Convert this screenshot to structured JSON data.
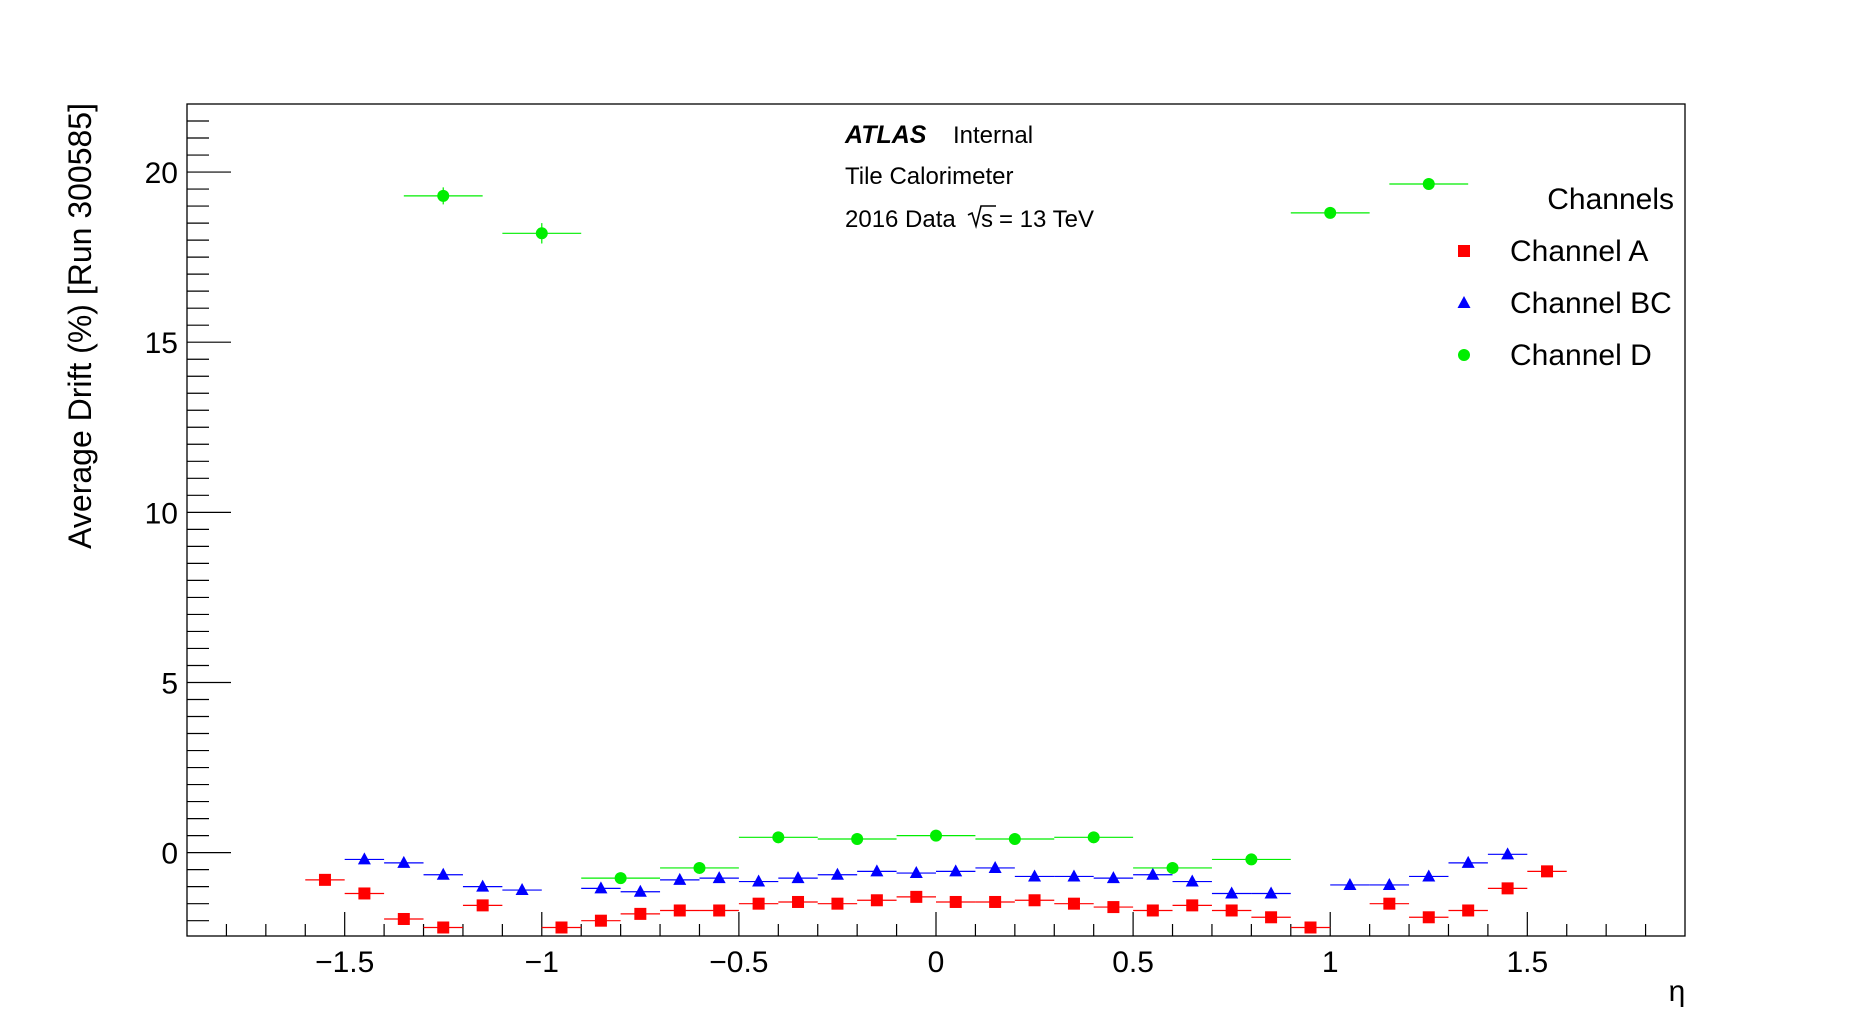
{
  "chart_data": {
    "type": "scatter",
    "title": "",
    "xlabel": "η",
    "ylabel": "Average Drift (%) [Run 300585]",
    "xlim": [
      -1.9,
      1.9
    ],
    "ylim": [
      -2.45,
      22
    ],
    "x_ticks": [
      -1.5,
      -1,
      -0.5,
      0,
      0.5,
      1,
      1.5
    ],
    "x_tick_labels": [
      "−1.5",
      "−1",
      "−0.5",
      "0",
      "0.5",
      "1",
      "1.5"
    ],
    "y_ticks": [
      0,
      5,
      10,
      15,
      20
    ],
    "y_tick_labels": [
      "0",
      "5",
      "10",
      "15",
      "20"
    ],
    "grid": false,
    "annotations": {
      "experiment": "ATLAS",
      "status": "Internal",
      "detector": "Tile Calorimeter",
      "dataset": "2016 Data",
      "energy_prefix": "s",
      "energy_value": "= 13 TeV"
    },
    "legend": {
      "title": "Channels",
      "position": "top-right"
    },
    "series": [
      {
        "name": "Channel A",
        "marker": "square",
        "color": "#ff0000",
        "x_halfwidth": 0.05,
        "points": [
          {
            "x": -1.55,
            "y": -0.8
          },
          {
            "x": -1.45,
            "y": -1.2
          },
          {
            "x": -1.35,
            "y": -1.95
          },
          {
            "x": -1.25,
            "y": -2.2
          },
          {
            "x": -1.15,
            "y": -1.55
          },
          {
            "x": -0.95,
            "y": -2.2
          },
          {
            "x": -0.85,
            "y": -2.0
          },
          {
            "x": -0.75,
            "y": -1.8
          },
          {
            "x": -0.65,
            "y": -1.7
          },
          {
            "x": -0.55,
            "y": -1.7
          },
          {
            "x": -0.45,
            "y": -1.5
          },
          {
            "x": -0.35,
            "y": -1.45
          },
          {
            "x": -0.25,
            "y": -1.5
          },
          {
            "x": -0.15,
            "y": -1.4
          },
          {
            "x": -0.05,
            "y": -1.3
          },
          {
            "x": 0.05,
            "y": -1.45
          },
          {
            "x": 0.15,
            "y": -1.45
          },
          {
            "x": 0.25,
            "y": -1.4
          },
          {
            "x": 0.35,
            "y": -1.5
          },
          {
            "x": 0.45,
            "y": -1.6
          },
          {
            "x": 0.55,
            "y": -1.7
          },
          {
            "x": 0.65,
            "y": -1.55
          },
          {
            "x": 0.75,
            "y": -1.7
          },
          {
            "x": 0.85,
            "y": -1.9
          },
          {
            "x": 0.95,
            "y": -2.2
          },
          {
            "x": 1.15,
            "y": -1.5
          },
          {
            "x": 1.25,
            "y": -1.9
          },
          {
            "x": 1.35,
            "y": -1.7
          },
          {
            "x": 1.45,
            "y": -1.05
          },
          {
            "x": 1.55,
            "y": -0.55
          }
        ]
      },
      {
        "name": "Channel BC",
        "marker": "triangle",
        "color": "#0000ff",
        "x_halfwidth": 0.05,
        "points": [
          {
            "x": -1.45,
            "y": -0.2
          },
          {
            "x": -1.35,
            "y": -0.3
          },
          {
            "x": -1.25,
            "y": -0.65
          },
          {
            "x": -1.15,
            "y": -1.0
          },
          {
            "x": -1.05,
            "y": -1.1
          },
          {
            "x": -0.85,
            "y": -1.05
          },
          {
            "x": -0.75,
            "y": -1.15
          },
          {
            "x": -0.65,
            "y": -0.8
          },
          {
            "x": -0.55,
            "y": -0.75
          },
          {
            "x": -0.45,
            "y": -0.85
          },
          {
            "x": -0.35,
            "y": -0.75
          },
          {
            "x": -0.25,
            "y": -0.65
          },
          {
            "x": -0.15,
            "y": -0.55
          },
          {
            "x": -0.05,
            "y": -0.6
          },
          {
            "x": 0.05,
            "y": -0.55
          },
          {
            "x": 0.15,
            "y": -0.45
          },
          {
            "x": 0.25,
            "y": -0.7
          },
          {
            "x": 0.35,
            "y": -0.7
          },
          {
            "x": 0.45,
            "y": -0.75
          },
          {
            "x": 0.55,
            "y": -0.65
          },
          {
            "x": 0.65,
            "y": -0.85
          },
          {
            "x": 0.75,
            "y": -1.2
          },
          {
            "x": 0.85,
            "y": -1.2
          },
          {
            "x": 1.05,
            "y": -0.95
          },
          {
            "x": 1.15,
            "y": -0.95
          },
          {
            "x": 1.25,
            "y": -0.7
          },
          {
            "x": 1.35,
            "y": -0.3
          },
          {
            "x": 1.45,
            "y": -0.05
          }
        ]
      },
      {
        "name": "Channel D",
        "marker": "circle",
        "color": "#00ee00",
        "x_halfwidth": 0.1,
        "points": [
          {
            "x": -1.25,
            "y": 19.3,
            "yerr": 0.25
          },
          {
            "x": -1.0,
            "y": 18.2,
            "yerr": 0.3
          },
          {
            "x": -0.8,
            "y": -0.75
          },
          {
            "x": -0.6,
            "y": -0.45
          },
          {
            "x": -0.4,
            "y": 0.45
          },
          {
            "x": -0.2,
            "y": 0.4
          },
          {
            "x": 0.0,
            "y": 0.5
          },
          {
            "x": 0.2,
            "y": 0.4
          },
          {
            "x": 0.4,
            "y": 0.45
          },
          {
            "x": 0.6,
            "y": -0.45
          },
          {
            "x": 0.8,
            "y": -0.2
          },
          {
            "x": 1.0,
            "y": 18.8
          },
          {
            "x": 1.25,
            "y": 19.65
          }
        ]
      }
    ]
  }
}
